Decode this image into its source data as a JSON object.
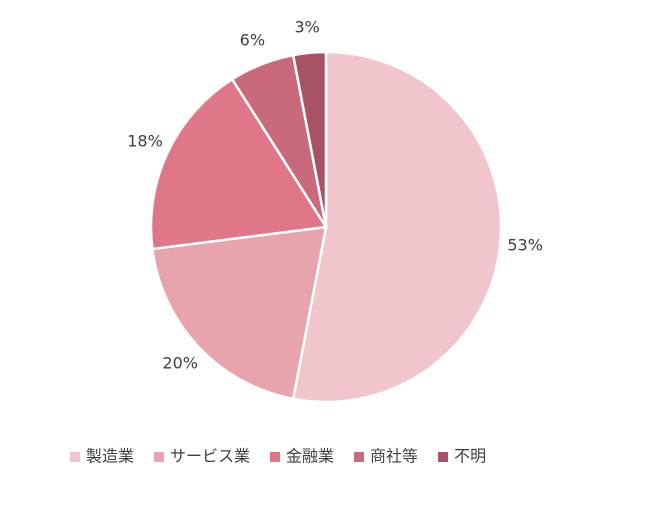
{
  "chart_data": {
    "type": "pie",
    "categories": [
      "製造業",
      "サービス業",
      "金融業",
      "商社等",
      "不明"
    ],
    "values": [
      53,
      20,
      18,
      6,
      3
    ],
    "value_labels": [
      "53%",
      "20%",
      "18%",
      "6%",
      "3%"
    ],
    "colors": [
      "#f0c5cb",
      "#e8a4ad",
      "#e07789",
      "#c96a7a",
      "#a85365"
    ],
    "legend": "bottom"
  }
}
